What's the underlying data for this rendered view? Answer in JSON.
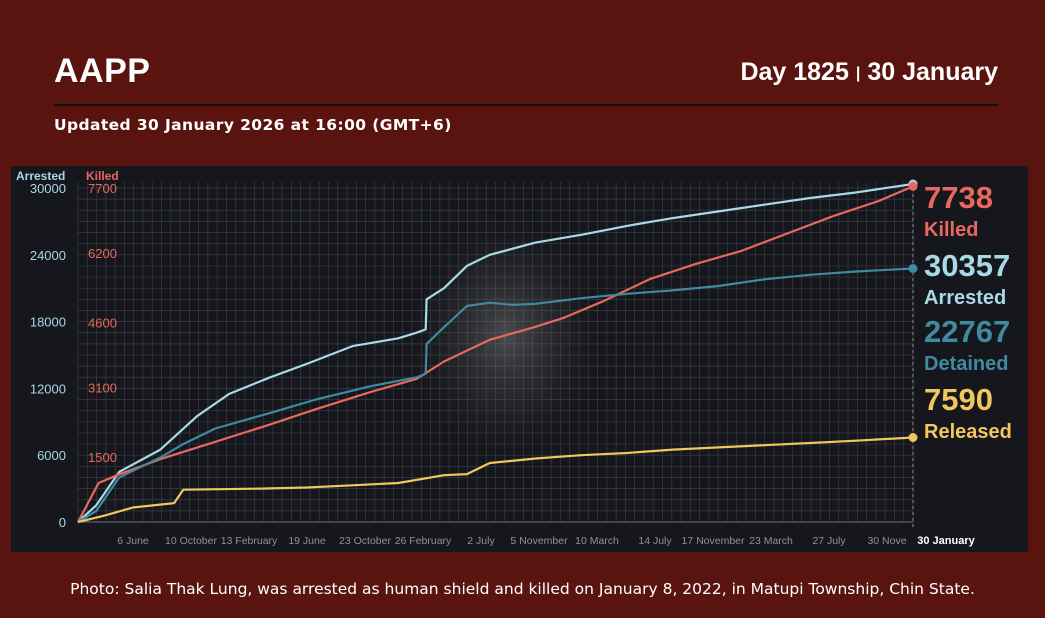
{
  "header": {
    "brand": "AAPP",
    "day_label": "Day 1825",
    "day_separator": "|",
    "date_label": "30 January",
    "updated": "Updated 30 January 2026 at 16:00 (GMT+6)"
  },
  "caption": "Photo: Salia Thak Lung, was arrested as human shield and killed on January 8, 2022, in Matupi Township, Chin State.",
  "colors": {
    "background": "#5a1410",
    "chart_bg": "#15171c",
    "arrested": "#a9d8e6",
    "killed": "#e8685e",
    "detained": "#3f8aa0",
    "released": "#f0c65e"
  },
  "chart_data": {
    "type": "line",
    "axis_titles": {
      "left_arrested": "Arrested",
      "left_killed": "Killed"
    },
    "y_arrested_ticks": [
      "30000",
      "24000",
      "18000",
      "12000",
      "6000",
      "0"
    ],
    "y_killed_ticks": [
      "7700",
      "6200",
      "4600",
      "3100",
      "1500"
    ],
    "y_arrested_range": [
      0,
      30000
    ],
    "y_killed_range": [
      0,
      7700
    ],
    "x_ticks": [
      "6 June",
      "10 October",
      "13 February",
      "19 June",
      "23 October",
      "26 February",
      "2 July",
      "5 November",
      "10 March",
      "14 July",
      "17 November",
      "23 March",
      "27 July",
      "30 Nove"
    ],
    "x_end_label": "30 January",
    "x_range_days": [
      0,
      1825
    ],
    "grid": true,
    "series": [
      {
        "name": "Arrested",
        "axis": "arrested",
        "points": [
          [
            0,
            0
          ],
          [
            40,
            1500
          ],
          [
            90,
            4500
          ],
          [
            180,
            6500
          ],
          [
            260,
            9500
          ],
          [
            330,
            11500
          ],
          [
            420,
            13000
          ],
          [
            500,
            14200
          ],
          [
            600,
            15800
          ],
          [
            700,
            16500
          ],
          [
            740,
            17000
          ],
          [
            760,
            17300
          ],
          [
            762,
            20000
          ],
          [
            800,
            21000
          ],
          [
            850,
            23000
          ],
          [
            900,
            24000
          ],
          [
            1000,
            25100
          ],
          [
            1100,
            25800
          ],
          [
            1200,
            26600
          ],
          [
            1300,
            27300
          ],
          [
            1400,
            27900
          ],
          [
            1500,
            28500
          ],
          [
            1600,
            29100
          ],
          [
            1700,
            29600
          ],
          [
            1825,
            30357
          ]
        ]
      },
      {
        "name": "Killed",
        "axis": "killed",
        "points": [
          [
            0,
            0
          ],
          [
            20,
            400
          ],
          [
            45,
            900
          ],
          [
            90,
            1100
          ],
          [
            180,
            1450
          ],
          [
            300,
            1850
          ],
          [
            420,
            2250
          ],
          [
            520,
            2600
          ],
          [
            640,
            3000
          ],
          [
            740,
            3300
          ],
          [
            800,
            3700
          ],
          [
            900,
            4200
          ],
          [
            1000,
            4500
          ],
          [
            1060,
            4700
          ],
          [
            1150,
            5100
          ],
          [
            1250,
            5600
          ],
          [
            1350,
            5950
          ],
          [
            1450,
            6250
          ],
          [
            1550,
            6650
          ],
          [
            1650,
            7050
          ],
          [
            1750,
            7400
          ],
          [
            1825,
            7738
          ]
        ]
      },
      {
        "name": "Detained",
        "axis": "arrested",
        "points": [
          [
            0,
            0
          ],
          [
            40,
            1000
          ],
          [
            90,
            4000
          ],
          [
            180,
            5800
          ],
          [
            230,
            7000
          ],
          [
            300,
            8400
          ],
          [
            420,
            9800
          ],
          [
            520,
            11000
          ],
          [
            640,
            12200
          ],
          [
            740,
            13000
          ],
          [
            760,
            13300
          ],
          [
            762,
            16000
          ],
          [
            800,
            17500
          ],
          [
            850,
            19400
          ],
          [
            900,
            19700
          ],
          [
            950,
            19500
          ],
          [
            1000,
            19600
          ],
          [
            1100,
            20100
          ],
          [
            1200,
            20500
          ],
          [
            1300,
            20800
          ],
          [
            1400,
            21200
          ],
          [
            1500,
            21800
          ],
          [
            1600,
            22200
          ],
          [
            1700,
            22500
          ],
          [
            1825,
            22767
          ]
        ]
      },
      {
        "name": "Released",
        "axis": "arrested",
        "points": [
          [
            0,
            0
          ],
          [
            20,
            200
          ],
          [
            60,
            600
          ],
          [
            120,
            1300
          ],
          [
            210,
            1700
          ],
          [
            230,
            2900
          ],
          [
            400,
            3000
          ],
          [
            500,
            3100
          ],
          [
            600,
            3300
          ],
          [
            700,
            3500
          ],
          [
            800,
            4200
          ],
          [
            850,
            4300
          ],
          [
            900,
            5300
          ],
          [
            1000,
            5700
          ],
          [
            1100,
            6000
          ],
          [
            1200,
            6200
          ],
          [
            1300,
            6500
          ],
          [
            1400,
            6700
          ],
          [
            1500,
            6900
          ],
          [
            1600,
            7100
          ],
          [
            1700,
            7300
          ],
          [
            1825,
            7590
          ]
        ]
      }
    ],
    "end_labels": [
      {
        "value": "7738",
        "label": "Killed",
        "color": "#e8685e"
      },
      {
        "value": "30357",
        "label": "Arrested",
        "color": "#a9d8e6"
      },
      {
        "value": "22767",
        "label": "Detained",
        "color": "#3f8aa0"
      },
      {
        "value": "7590",
        "label": "Released",
        "color": "#f0c65e"
      }
    ]
  }
}
